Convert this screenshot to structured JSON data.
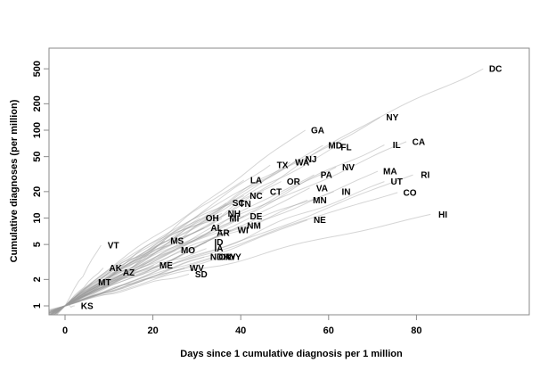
{
  "figure": {
    "background": "#ffffff",
    "line_color": "#9a9a9a",
    "box_color": "#8a8a8a",
    "text_color": "#000000"
  },
  "chart_data": {
    "type": "line",
    "title": "",
    "xlabel": "Days since 1 cumulative diagnosis per 1 million",
    "ylabel": "Cumulative diagnoses (per million)",
    "x_ticks": [
      0,
      20,
      40,
      60,
      80
    ],
    "y_ticks": [
      1,
      2,
      5,
      10,
      20,
      50,
      100,
      200,
      500
    ],
    "xlim": [
      -3.7,
      106
    ],
    "ylim": [
      0.79,
      860
    ],
    "y_scale": "log10",
    "grid": false,
    "legend": "none",
    "description": "One light-gray trajectory per US state/district, each ending at its two-letter label; x = days since 1 cumulative diagnosis per 1 million, y = cumulative diagnoses per million (log scale).",
    "series": [
      {
        "state": "KS",
        "day": 5,
        "value": 1.0
      },
      {
        "state": "MT",
        "day": 9,
        "value": 1.85
      },
      {
        "state": "VT",
        "day": 11,
        "value": 4.9
      },
      {
        "state": "AK",
        "day": 11.5,
        "value": 2.7
      },
      {
        "state": "AZ",
        "day": 14.5,
        "value": 2.4
      },
      {
        "state": "ME",
        "day": 23,
        "value": 2.9
      },
      {
        "state": "MS",
        "day": 25.5,
        "value": 5.5
      },
      {
        "state": "MO",
        "day": 28,
        "value": 4.3
      },
      {
        "state": "WV",
        "day": 30,
        "value": 2.7
      },
      {
        "state": "SD",
        "day": 31,
        "value": 2.3
      },
      {
        "state": "OH",
        "day": 33.5,
        "value": 10
      },
      {
        "state": "AL",
        "day": 34.5,
        "value": 7.7
      },
      {
        "state": "ND",
        "day": 34.5,
        "value": 3.6
      },
      {
        "state": "ID",
        "day": 35,
        "value": 5.3
      },
      {
        "state": "IA",
        "day": 35,
        "value": 4.5
      },
      {
        "state": "AR",
        "day": 36,
        "value": 6.8
      },
      {
        "state": "OK",
        "day": 36.5,
        "value": 3.6
      },
      {
        "state": "KY",
        "day": 37.5,
        "value": 3.6
      },
      {
        "state": "MI",
        "day": 38.5,
        "value": 9.9
      },
      {
        "state": "NH",
        "day": 38.5,
        "value": 11.3
      },
      {
        "state": "WY",
        "day": 38.5,
        "value": 3.6
      },
      {
        "state": "SC",
        "day": 39.5,
        "value": 14.8
      },
      {
        "state": "WI",
        "day": 40.5,
        "value": 7.3
      },
      {
        "state": "TN",
        "day": 41,
        "value": 14.6
      },
      {
        "state": "NM",
        "day": 43,
        "value": 8.2
      },
      {
        "state": "LA",
        "day": 43.5,
        "value": 27
      },
      {
        "state": "DE",
        "day": 43.5,
        "value": 10.5
      },
      {
        "state": "NC",
        "day": 43.5,
        "value": 18
      },
      {
        "state": "CT",
        "day": 48,
        "value": 20
      },
      {
        "state": "TX",
        "day": 49.5,
        "value": 40
      },
      {
        "state": "OR",
        "day": 52,
        "value": 26
      },
      {
        "state": "WA",
        "day": 54,
        "value": 43
      },
      {
        "state": "NJ",
        "day": 56,
        "value": 47
      },
      {
        "state": "GA",
        "day": 57.5,
        "value": 100
      },
      {
        "state": "MN",
        "day": 58,
        "value": 16
      },
      {
        "state": "NE",
        "day": 58,
        "value": 9.5
      },
      {
        "state": "VA",
        "day": 58.5,
        "value": 22
      },
      {
        "state": "PA",
        "day": 59.5,
        "value": 31
      },
      {
        "state": "MD",
        "day": 61.5,
        "value": 67
      },
      {
        "state": "FL",
        "day": 64,
        "value": 64
      },
      {
        "state": "IN",
        "day": 64,
        "value": 20
      },
      {
        "state": "NV",
        "day": 64.5,
        "value": 38
      },
      {
        "state": "MA",
        "day": 74,
        "value": 34
      },
      {
        "state": "NY",
        "day": 74.5,
        "value": 140
      },
      {
        "state": "IL",
        "day": 75.5,
        "value": 68
      },
      {
        "state": "UT",
        "day": 75.5,
        "value": 26
      },
      {
        "state": "CO",
        "day": 78.5,
        "value": 19.5
      },
      {
        "state": "CA",
        "day": 80.5,
        "value": 74
      },
      {
        "state": "RI",
        "day": 82,
        "value": 31
      },
      {
        "state": "HI",
        "day": 86,
        "value": 11
      },
      {
        "state": "DC",
        "day": 98,
        "value": 500
      }
    ]
  }
}
